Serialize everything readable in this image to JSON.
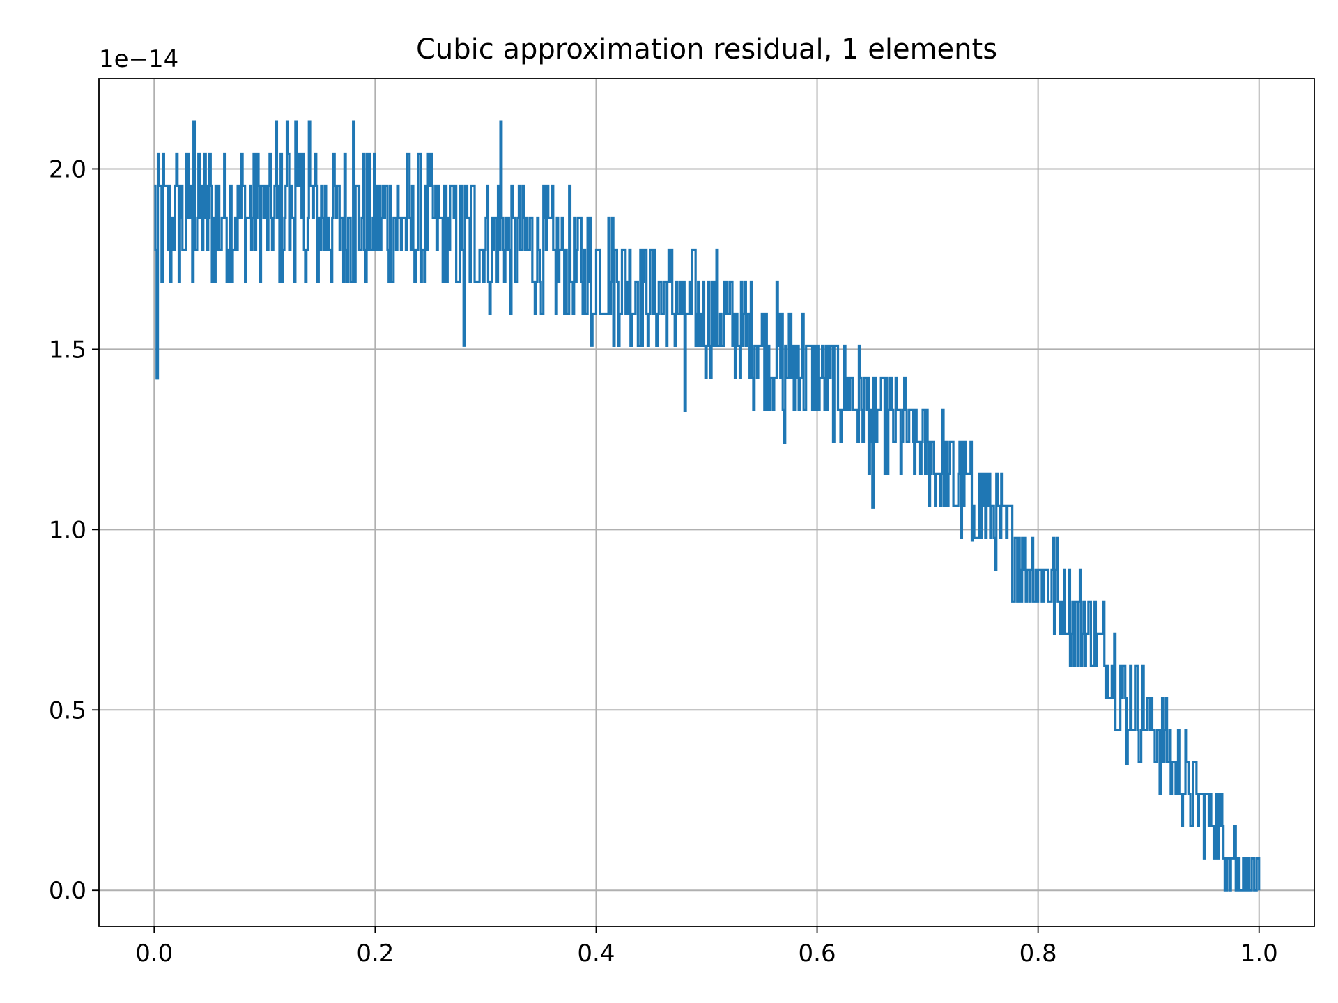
{
  "chart_data": {
    "type": "line",
    "title": "Cubic approximation residual, 1 elements",
    "xlabel": "",
    "ylabel": "",
    "y_offset_label": "1e−14",
    "xlim": [
      -0.05,
      1.05
    ],
    "ylim": [
      -0.1,
      2.25
    ],
    "grid": true,
    "x_ticks": [
      0.0,
      0.2,
      0.4,
      0.6,
      0.8,
      1.0
    ],
    "x_tick_labels": [
      "0.0",
      "0.2",
      "0.4",
      "0.6",
      "0.8",
      "1.0"
    ],
    "y_ticks": [
      0.0,
      0.5,
      1.0,
      1.5,
      2.0
    ],
    "y_tick_labels": [
      "0.0",
      "0.5",
      "1.0",
      "1.5",
      "2.0"
    ],
    "series": [
      {
        "color": "#1f77b4",
        "base_curve": {
          "x": [
            0.0,
            0.05,
            0.1,
            0.15,
            0.2,
            0.25,
            0.3,
            0.35,
            0.4,
            0.45,
            0.5,
            0.55,
            0.6,
            0.65,
            0.7,
            0.75,
            0.8,
            0.85,
            0.9,
            0.95,
            1.0
          ],
          "y": [
            1.85,
            1.86,
            1.87,
            1.87,
            1.86,
            1.84,
            1.81,
            1.77,
            1.72,
            1.66,
            1.6,
            1.52,
            1.43,
            1.33,
            1.21,
            1.07,
            0.88,
            0.7,
            0.46,
            0.22,
            0.0
          ]
        },
        "noise_amplitude": 0.21,
        "samples": 900,
        "spikes": [
          {
            "x": 0.002,
            "y": 1.42
          },
          {
            "x": 0.035,
            "y": 2.13
          },
          {
            "x": 0.11,
            "y": 2.13
          },
          {
            "x": 0.12,
            "y": 2.13
          },
          {
            "x": 0.128,
            "y": 2.13
          },
          {
            "x": 0.14,
            "y": 2.13
          },
          {
            "x": 0.18,
            "y": 2.13
          },
          {
            "x": 0.28,
            "y": 1.51
          },
          {
            "x": 0.313,
            "y": 2.13
          },
          {
            "x": 0.395,
            "y": 1.51
          },
          {
            "x": 0.48,
            "y": 1.33
          },
          {
            "x": 0.57,
            "y": 1.24
          },
          {
            "x": 0.65,
            "y": 1.06
          },
          {
            "x": 0.74,
            "y": 0.97
          },
          {
            "x": 0.88,
            "y": 0.35
          }
        ]
      }
    ]
  }
}
